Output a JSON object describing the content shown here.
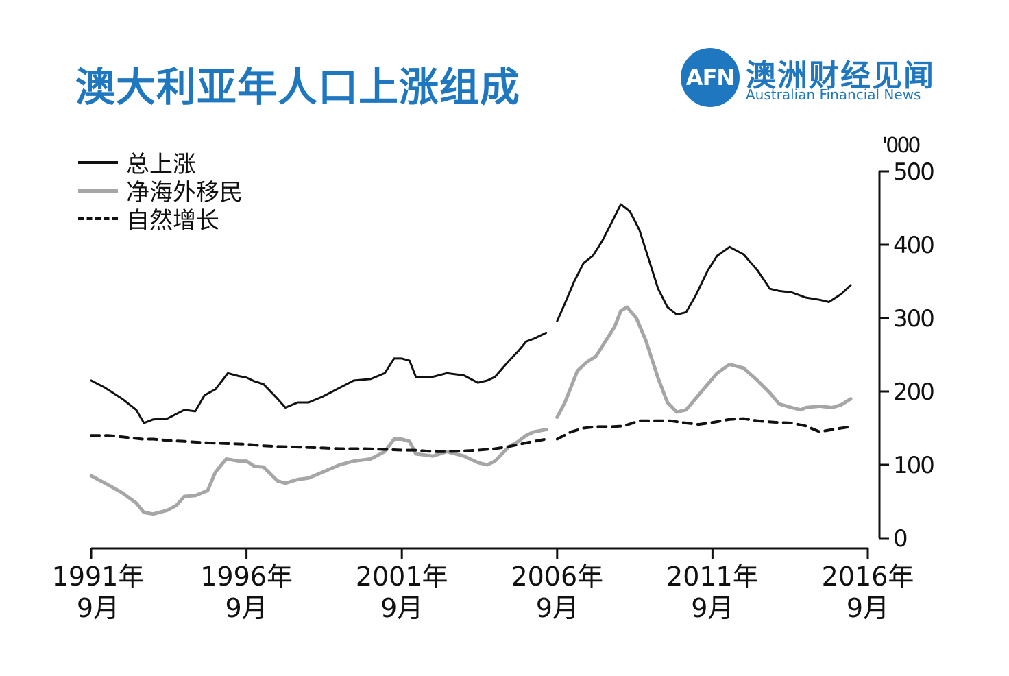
{
  "header": {
    "title": "澳大利亚年人口上涨组成",
    "logo_mark": "AFN",
    "logo_cn": "澳洲财经见闻",
    "logo_en": "Australian Financial News"
  },
  "colors": {
    "title": "#1f78bf",
    "total": "#111111",
    "migration": "#a6a6a6",
    "natural": "#111111"
  },
  "chart_data": {
    "type": "line",
    "title": "澳大利亚年人口上涨组成",
    "ylabel": "'000",
    "y_unit": "'000",
    "ylim": [
      0,
      500
    ],
    "yticks": [
      0,
      100,
      200,
      300,
      400,
      500
    ],
    "xlim": [
      1991.75,
      2016.75
    ],
    "xticks": [
      {
        "value": 1991.75,
        "year": "1991年",
        "month": "9月"
      },
      {
        "value": 1996.75,
        "year": "1996年",
        "month": "9月"
      },
      {
        "value": 2001.75,
        "year": "2001年",
        "month": "9月"
      },
      {
        "value": 2006.75,
        "year": "2006年",
        "month": "9月"
      },
      {
        "value": 2011.75,
        "year": "2011年",
        "month": "9月"
      },
      {
        "value": 2016.75,
        "year": "2016年",
        "month": "9月"
      }
    ],
    "legend_position": "top-left",
    "series": [
      {
        "name": "总上涨",
        "style": "solid-black",
        "segments": [
          [
            [
              1991.75,
              215
            ],
            [
              1992.2,
              205
            ],
            [
              1992.75,
              190
            ],
            [
              1993.2,
              175
            ],
            [
              1993.45,
              157
            ],
            [
              1993.75,
              162
            ],
            [
              1994.2,
              163
            ],
            [
              1994.75,
              175
            ],
            [
              1995.1,
              173
            ],
            [
              1995.4,
              195
            ],
            [
              1995.75,
              203
            ],
            [
              1996.15,
              225
            ],
            [
              1996.5,
              221
            ],
            [
              1996.75,
              219
            ],
            [
              1997.0,
              214
            ],
            [
              1997.3,
              210
            ],
            [
              1997.75,
              190
            ],
            [
              1998.0,
              178
            ],
            [
              1998.4,
              185
            ],
            [
              1998.75,
              185
            ],
            [
              1999.2,
              193
            ],
            [
              1999.75,
              205
            ],
            [
              2000.2,
              215
            ],
            [
              2000.75,
              217
            ],
            [
              2001.2,
              225
            ],
            [
              2001.5,
              245
            ],
            [
              2001.75,
              245
            ],
            [
              2002.0,
              242
            ],
            [
              2002.2,
              220
            ],
            [
              2002.75,
              220
            ],
            [
              2003.2,
              225
            ],
            [
              2003.75,
              222
            ],
            [
              2004.2,
              212
            ],
            [
              2004.5,
              215
            ],
            [
              2004.75,
              220
            ],
            [
              2005.2,
              242
            ],
            [
              2005.5,
              255
            ],
            [
              2005.75,
              268
            ],
            [
              2006.0,
              272
            ],
            [
              2006.4,
              280
            ]
          ],
          [
            [
              2006.75,
              296
            ],
            [
              2007.0,
              320
            ],
            [
              2007.3,
              350
            ],
            [
              2007.6,
              375
            ],
            [
              2007.9,
              385
            ],
            [
              2008.2,
              405
            ],
            [
              2008.5,
              430
            ],
            [
              2008.8,
              455
            ],
            [
              2009.1,
              445
            ],
            [
              2009.4,
              420
            ],
            [
              2009.7,
              380
            ],
            [
              2010.0,
              340
            ],
            [
              2010.3,
              315
            ],
            [
              2010.6,
              305
            ],
            [
              2010.9,
              308
            ],
            [
              2011.2,
              330
            ],
            [
              2011.6,
              365
            ],
            [
              2011.9,
              385
            ],
            [
              2012.3,
              397
            ],
            [
              2012.75,
              387
            ],
            [
              2013.2,
              365
            ],
            [
              2013.6,
              340
            ],
            [
              2013.9,
              337
            ],
            [
              2014.3,
              335
            ],
            [
              2014.75,
              328
            ],
            [
              2015.2,
              325
            ],
            [
              2015.5,
              322
            ],
            [
              2015.9,
              333
            ],
            [
              2016.2,
              345
            ]
          ]
        ]
      },
      {
        "name": "净海外移民",
        "style": "solid-grey",
        "segments": [
          [
            [
              1991.75,
              85
            ],
            [
              1992.2,
              75
            ],
            [
              1992.75,
              62
            ],
            [
              1993.2,
              48
            ],
            [
              1993.45,
              35
            ],
            [
              1993.75,
              33
            ],
            [
              1994.2,
              38
            ],
            [
              1994.5,
              45
            ],
            [
              1994.75,
              57
            ],
            [
              1995.1,
              58
            ],
            [
              1995.5,
              65
            ],
            [
              1995.75,
              90
            ],
            [
              1996.1,
              108
            ],
            [
              1996.5,
              105
            ],
            [
              1996.75,
              105
            ],
            [
              1997.0,
              98
            ],
            [
              1997.3,
              97
            ],
            [
              1997.75,
              78
            ],
            [
              1998.0,
              75
            ],
            [
              1998.4,
              80
            ],
            [
              1998.75,
              82
            ],
            [
              1999.2,
              90
            ],
            [
              1999.75,
              100
            ],
            [
              2000.2,
              105
            ],
            [
              2000.75,
              108
            ],
            [
              2001.2,
              118
            ],
            [
              2001.5,
              135
            ],
            [
              2001.75,
              135
            ],
            [
              2002.0,
              132
            ],
            [
              2002.2,
              115
            ],
            [
              2002.75,
              112
            ],
            [
              2003.2,
              118
            ],
            [
              2003.75,
              112
            ],
            [
              2004.2,
              103
            ],
            [
              2004.5,
              100
            ],
            [
              2004.75,
              105
            ],
            [
              2005.2,
              125
            ],
            [
              2005.5,
              132
            ],
            [
              2005.75,
              140
            ],
            [
              2006.0,
              145
            ],
            [
              2006.4,
              148
            ]
          ],
          [
            [
              2006.75,
              165
            ],
            [
              2007.0,
              185
            ],
            [
              2007.4,
              228
            ],
            [
              2007.7,
              240
            ],
            [
              2008.0,
              248
            ],
            [
              2008.3,
              268
            ],
            [
              2008.6,
              288
            ],
            [
              2008.8,
              310
            ],
            [
              2009.0,
              315
            ],
            [
              2009.3,
              300
            ],
            [
              2009.6,
              270
            ],
            [
              2010.0,
              218
            ],
            [
              2010.3,
              185
            ],
            [
              2010.6,
              172
            ],
            [
              2010.9,
              175
            ],
            [
              2011.2,
              190
            ],
            [
              2011.6,
              210
            ],
            [
              2011.9,
              225
            ],
            [
              2012.3,
              237
            ],
            [
              2012.75,
              232
            ],
            [
              2013.2,
              215
            ],
            [
              2013.6,
              198
            ],
            [
              2013.9,
              183
            ],
            [
              2014.3,
              178
            ],
            [
              2014.6,
              175
            ],
            [
              2014.75,
              178
            ],
            [
              2015.2,
              180
            ],
            [
              2015.6,
              178
            ],
            [
              2015.9,
              182
            ],
            [
              2016.2,
              190
            ]
          ]
        ]
      },
      {
        "name": "自然增长",
        "style": "dashed-black",
        "segments": [
          [
            [
              1991.75,
              140
            ],
            [
              1992.3,
              140
            ],
            [
              1992.75,
              138
            ],
            [
              1993.4,
              135
            ],
            [
              1993.75,
              135
            ],
            [
              1994.3,
              133
            ],
            [
              1994.75,
              132
            ],
            [
              1995.5,
              130
            ],
            [
              1996.2,
              129
            ],
            [
              1996.75,
              128
            ],
            [
              1997.3,
              126
            ],
            [
              1997.75,
              125
            ],
            [
              1998.5,
              124
            ],
            [
              1999.2,
              123
            ],
            [
              1999.75,
              122
            ],
            [
              2000.5,
              122
            ],
            [
              2001.2,
              121
            ],
            [
              2001.75,
              120
            ],
            [
              2002.2,
              120
            ],
            [
              2002.75,
              118
            ],
            [
              2003.2,
              118
            ],
            [
              2003.75,
              119
            ],
            [
              2004.2,
              120
            ],
            [
              2004.75,
              122
            ],
            [
              2005.2,
              125
            ],
            [
              2005.75,
              130
            ],
            [
              2006.4,
              135
            ]
          ],
          [
            [
              2006.75,
              135
            ],
            [
              2007.2,
              145
            ],
            [
              2007.6,
              150
            ],
            [
              2008.0,
              152
            ],
            [
              2008.5,
              152
            ],
            [
              2008.9,
              153
            ],
            [
              2009.4,
              160
            ],
            [
              2009.9,
              160
            ],
            [
              2010.4,
              160
            ],
            [
              2010.9,
              157
            ],
            [
              2011.3,
              155
            ],
            [
              2011.8,
              158
            ],
            [
              2012.3,
              162
            ],
            [
              2012.75,
              163
            ],
            [
              2013.2,
              160
            ],
            [
              2013.75,
              158
            ],
            [
              2014.3,
              157
            ],
            [
              2014.75,
              153
            ],
            [
              2015.2,
              145
            ],
            [
              2015.6,
              148
            ],
            [
              2016.2,
              152
            ]
          ]
        ]
      }
    ]
  }
}
